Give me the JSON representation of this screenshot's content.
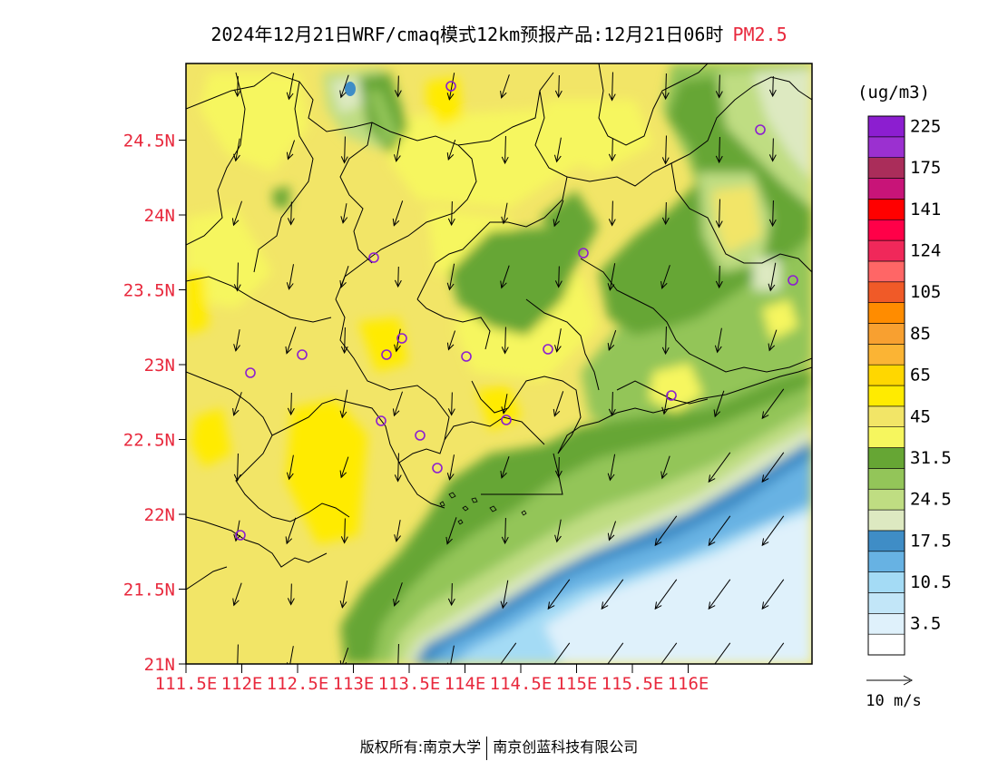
{
  "title": {
    "main": "2024年12月21日WRF/cmaq模式12km预报产品:12月21日06时",
    "pollutant": "PM2.5"
  },
  "map": {
    "lon_ticks": [
      "111.5E",
      "112E",
      "112.5E",
      "113E",
      "113.5E",
      "114E",
      "114.5E",
      "115E",
      "115.5E",
      "116E"
    ],
    "lat_ticks": [
      "21N",
      "21.5N",
      "22N",
      "22.5N",
      "23N",
      "23.5N",
      "24N",
      "24.5N"
    ],
    "tick_color": "#e8283c"
  },
  "legend": {
    "unit": "(ug/m3)",
    "levels": [
      {
        "label": "",
        "color": "#ffffff"
      },
      {
        "label": "3.5",
        "color": "#dff1fb"
      },
      {
        "label": "",
        "color": "#c2e6f8"
      },
      {
        "label": "10.5",
        "color": "#a4dbf5"
      },
      {
        "label": "",
        "color": "#67b2e3"
      },
      {
        "label": "17.5",
        "color": "#3f8dc6"
      },
      {
        "label": "",
        "color": "#dde9c1"
      },
      {
        "label": "24.5",
        "color": "#bfdd82"
      },
      {
        "label": "",
        "color": "#93c559"
      },
      {
        "label": "31.5",
        "color": "#66a634"
      },
      {
        "label": "",
        "color": "#f6f65e"
      },
      {
        "label": "45",
        "color": "#f2e567"
      },
      {
        "label": "",
        "color": "#ffeb00"
      },
      {
        "label": "65",
        "color": "#ffd700"
      },
      {
        "label": "",
        "color": "#fbb434"
      },
      {
        "label": "85",
        "color": "#f8a030"
      },
      {
        "label": "",
        "color": "#ff8c00"
      },
      {
        "label": "105",
        "color": "#f05a28"
      },
      {
        "label": "",
        "color": "#ff6666"
      },
      {
        "label": "124",
        "color": "#f0285a"
      },
      {
        "label": "",
        "color": "#ff0048"
      },
      {
        "label": "141",
        "color": "#ff0000"
      },
      {
        "label": "",
        "color": "#c81478"
      },
      {
        "label": "175",
        "color": "#aa2d5a"
      },
      {
        "label": "",
        "color": "#9b30d0"
      },
      {
        "label": "225",
        "color": "#8c1ed0"
      }
    ],
    "wind_scale_label": "10 m/s"
  },
  "footer": {
    "left": "版权所有:南京大学",
    "right": "南京创蓝科技有限公司"
  }
}
